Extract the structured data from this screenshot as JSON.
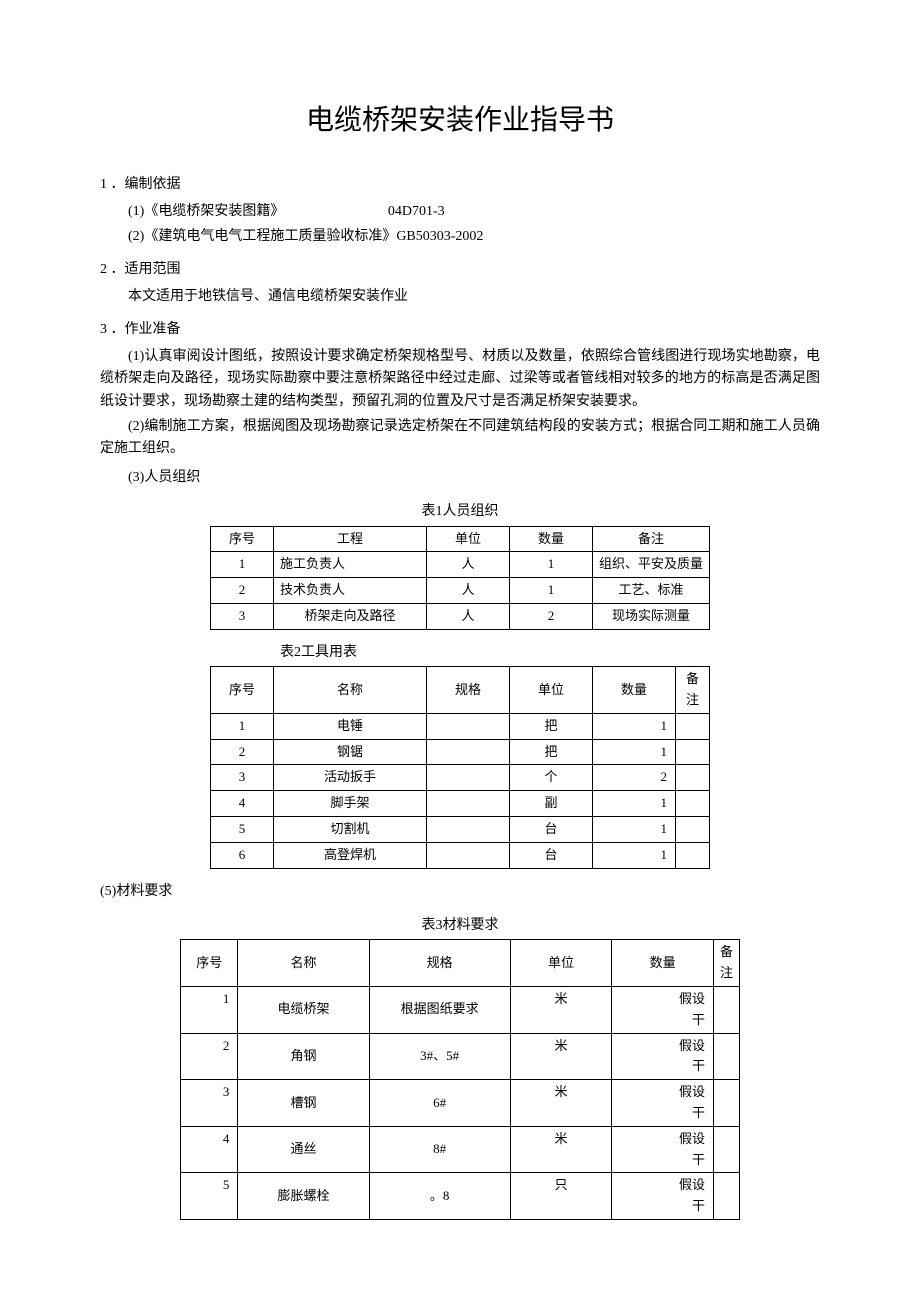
{
  "title": "电缆桥架安装作业指导书",
  "sections": {
    "s1": {
      "heading": "1 ．编制依据",
      "refs": [
        {
          "label": "(1)《电缆桥架安装图籍》",
          "code": "04D701-3"
        },
        {
          "label": "(2)《建筑电气电气工程施工质量验收标准》GB50303-2002",
          "code": ""
        }
      ]
    },
    "s2": {
      "heading": "2 ．适用范围",
      "body": "本文适用于地铁信号、通信电缆桥架安装作业"
    },
    "s3": {
      "heading": "3 ．作业准备",
      "p1": "(1)认真审阅设计图纸，按照设计要求确定桥架规格型号、材质以及数量，依照综合管线图进行现场实地勘察，电缆桥架走向及路径，现场实际勘察中要注意桥架路径中经过走廊、过梁等或者管线相对较多的地方的标高是否满足图纸设计要求，现场勘察土建的结构类型，预留孔洞的位置及尺寸是否满足桥架安装要求。",
      "p2": "(2)编制施工方案，根据阅图及现场勘察记录选定桥架在不同建筑结构段的安装方式；根据合同工期和施工人员确定施工组织。",
      "p3": "(3)人员组织",
      "p5": "(5)材料要求"
    }
  },
  "table1": {
    "caption": "表1人员组织",
    "headers": [
      "序号",
      "工程",
      "单位",
      "数量",
      "备注"
    ],
    "rows": [
      [
        "1",
        "施工负责人",
        "人",
        "1",
        "组织、平安及质量"
      ],
      [
        "2",
        "技术负责人",
        "人",
        "1",
        "工艺、标准"
      ],
      [
        "3",
        "桥架走向及路径",
        "人",
        "2",
        "现场实际测量"
      ]
    ]
  },
  "table2": {
    "caption": "表2工具用表",
    "headers": [
      "序号",
      "名称",
      "规格",
      "单位",
      "数量",
      "备注"
    ],
    "rows": [
      [
        "1",
        "电锤",
        "",
        "把",
        "1",
        ""
      ],
      [
        "2",
        "钢锯",
        "",
        "把",
        "1",
        ""
      ],
      [
        "3",
        "活动扳手",
        "",
        "个",
        "2",
        ""
      ],
      [
        "4",
        "脚手架",
        "",
        "副",
        "1",
        ""
      ],
      [
        "5",
        "切割机",
        "",
        "台",
        "1",
        ""
      ],
      [
        "6",
        "高登焊机",
        "",
        "台",
        "1",
        ""
      ]
    ]
  },
  "table3": {
    "caption": "表3材料要求",
    "headers": [
      "序号",
      "名称",
      "规格",
      "单位",
      "数量",
      "备注"
    ],
    "rows": [
      [
        "1",
        "电缆桥架",
        "根据图纸要求",
        "米",
        "假设干",
        ""
      ],
      [
        "2",
        "角钢",
        "3#、5#",
        "米",
        "假设干",
        ""
      ],
      [
        "3",
        "槽钢",
        "6#",
        "米",
        "假设干",
        ""
      ],
      [
        "4",
        "通丝",
        "8#",
        "米",
        "假设干",
        ""
      ],
      [
        "5",
        "膨胀螺栓",
        "。8",
        "只",
        "假设干",
        ""
      ]
    ]
  }
}
